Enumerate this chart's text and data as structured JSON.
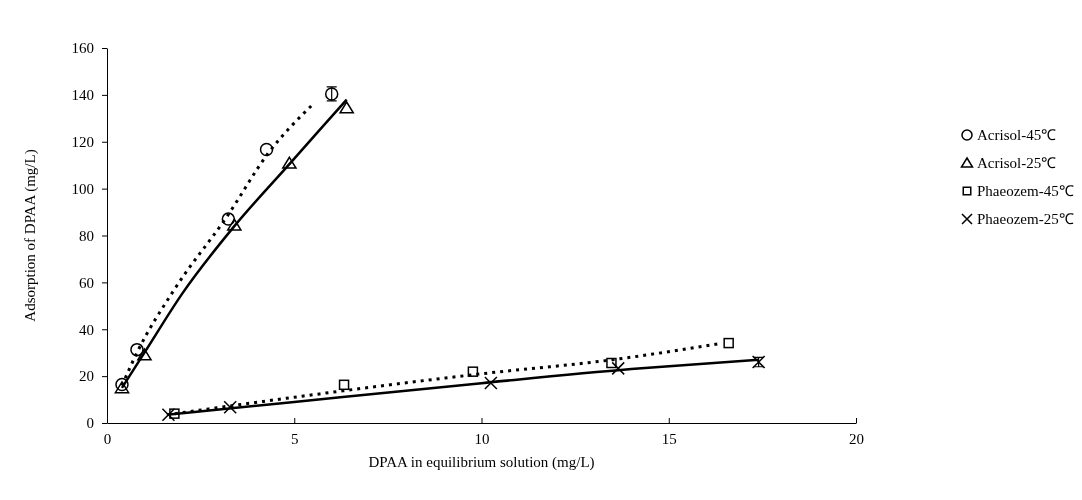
{
  "chart_data": {
    "type": "scatter",
    "xlabel": "DPAA in equilibrium solution (mg/L)",
    "ylabel": "Adsorption of DPAA (mg/L)",
    "xlim": [
      0,
      20
    ],
    "xticks": [
      0,
      5,
      10,
      15,
      20
    ],
    "ylim": [
      0,
      160
    ],
    "yticks": [
      0,
      20,
      40,
      60,
      80,
      100,
      120,
      140,
      160
    ],
    "grid": false,
    "legend": "right",
    "series": [
      {
        "name": "Acrisol-45℃",
        "color": "#000000",
        "marker": "circle",
        "x": [
          0.4,
          0.8,
          3.24,
          4.26,
          6.0
        ],
        "values": [
          16.4,
          31.3,
          87,
          116.7,
          140.4
        ],
        "errors": [
          null,
          null,
          null,
          null,
          3
        ]
      },
      {
        "name": "Acrisol-25℃",
        "color": "#000000",
        "marker": "triangle",
        "x": [
          0.4,
          1.0,
          3.4,
          4.87,
          6.4
        ],
        "values": [
          15,
          29,
          84.4,
          110.8,
          134.4
        ]
      },
      {
        "name": "Phaeozem-45℃",
        "color": "#000000",
        "marker": "square",
        "x": [
          1.8,
          6.33,
          9.77,
          13.47,
          16.6
        ],
        "values": [
          4,
          16.3,
          21.9,
          25.6,
          34.1
        ]
      },
      {
        "name": "Phaeozem-25℃",
        "color": "#000000",
        "marker": "cross",
        "x": [
          1.64,
          3.29,
          10.25,
          13.65,
          17.4
        ],
        "values": [
          3.5,
          6.7,
          17.1,
          23.3,
          26
        ],
        "errors": [
          null,
          null,
          null,
          null,
          2
        ]
      },
      {
        "type": "line",
        "color": "#000000",
        "line_style": "dotted",
        "x": [
          0.4,
          0.8,
          1.8,
          3.2,
          4.3,
          5.5
        ],
        "values": [
          16,
          30,
          57,
          88,
          115,
          136
        ]
      },
      {
        "type": "line",
        "color": "#000000",
        "line_style": "solid",
        "x": [
          0.4,
          1,
          2,
          3.4,
          4.9,
          6.4
        ],
        "values": [
          15,
          30,
          55,
          84,
          111,
          138
        ]
      },
      {
        "type": "line",
        "color": "#000000",
        "line_style": "dotted",
        "x": [
          1.6,
          5,
          10,
          13.5,
          16.4
        ],
        "values": [
          3.5,
          11,
          21,
          27,
          34
        ]
      },
      {
        "type": "line",
        "color": "#000000",
        "line_style": "solid",
        "x": [
          1.6,
          5,
          10,
          14,
          17.4
        ],
        "values": [
          3.5,
          9,
          17,
          23,
          27
        ]
      }
    ]
  }
}
